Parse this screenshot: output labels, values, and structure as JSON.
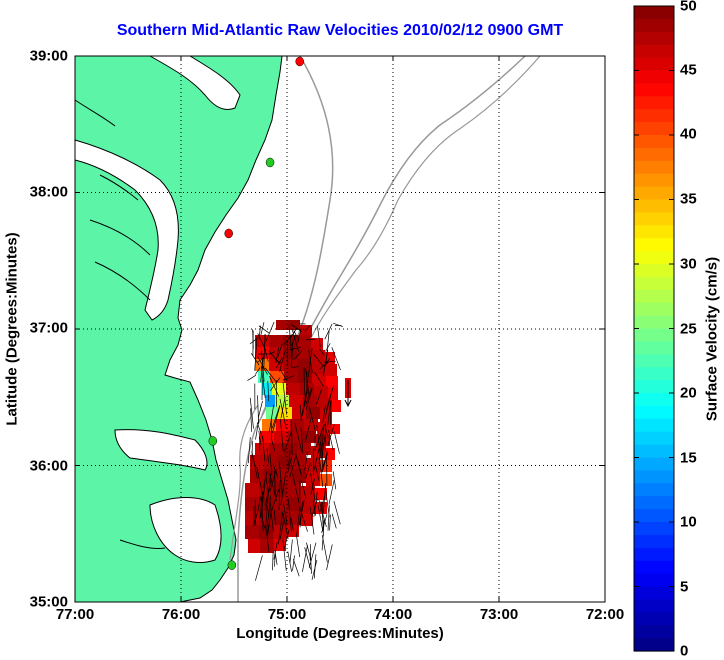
{
  "title": "Southern Mid-Atlantic Raw Velocities 2010/02/12 0900 GMT",
  "map": {
    "x_label": "Longitude (Degrees:Minutes)",
    "y_label": "Latitude (Degrees:Minutes)",
    "lon_range": [
      -77,
      -72
    ],
    "lat_range": [
      35,
      39
    ],
    "x_ticks": [
      "77:00",
      "76:00",
      "75:00",
      "74:00",
      "73:00",
      "72:00"
    ],
    "y_ticks": [
      "39:00",
      "38:00",
      "37:00",
      "36:00",
      "35:00"
    ],
    "grid": "dotted",
    "land_color": "#5cf5a8",
    "stations": [
      {
        "lon": -74.88,
        "lat": 38.96,
        "color": "#ff0000"
      },
      {
        "lon": -75.16,
        "lat": 38.22,
        "color": "#22cc22"
      },
      {
        "lon": -75.55,
        "lat": 37.7,
        "color": "#ff0000"
      },
      {
        "lon": -75.7,
        "lat": 36.18,
        "color": "#22cc22"
      },
      {
        "lon": -75.52,
        "lat": 35.27,
        "color": "#22cc22"
      }
    ]
  },
  "colorbar": {
    "label": "Surface Velocity (cm/s)",
    "ticks": [
      "50",
      "45",
      "40",
      "35",
      "30",
      "25",
      "20",
      "15",
      "10",
      "5",
      "0"
    ],
    "min": 0,
    "max": 50
  }
}
